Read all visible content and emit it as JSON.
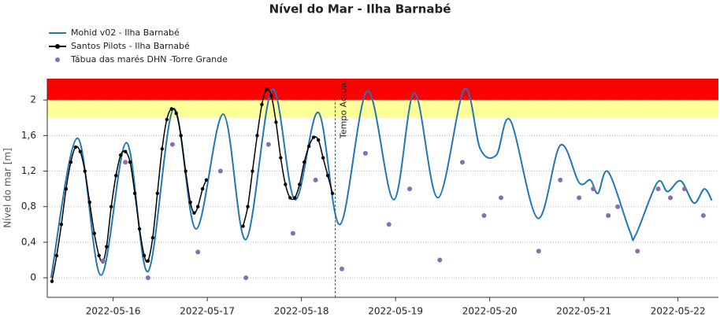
{
  "chart_data": {
    "type": "line",
    "title": "Nível do Mar - Ilha Barnabé",
    "y_label": "Nível do mar [m]",
    "xlim": [
      15.3,
      22.43
    ],
    "ylim": [
      -0.22,
      2.24
    ],
    "xticks": [
      {
        "value": 16,
        "label": "2022-05-16"
      },
      {
        "value": 17,
        "label": "2022-05-17"
      },
      {
        "value": 18,
        "label": "2022-05-18"
      },
      {
        "value": 19,
        "label": "2022-05-19"
      },
      {
        "value": 20,
        "label": "2022-05-20"
      },
      {
        "value": 21,
        "label": "2022-05-21"
      },
      {
        "value": 22,
        "label": "2022-05-22"
      }
    ],
    "yticks": [
      0,
      {
        "value": 0.4,
        "label": "0,4"
      },
      {
        "value": 0.8,
        "label": "0,8"
      },
      {
        "value": 1.2,
        "label": "1,2"
      },
      {
        "value": 1.6,
        "label": "1,6"
      },
      2
    ],
    "grid": true,
    "bands": [
      {
        "from": 2.0,
        "to": 2.24,
        "color": "#ff0000"
      },
      {
        "from": 1.8,
        "to": 2.0,
        "color": "#ffff99"
      }
    ],
    "marker_line": {
      "x": 18.36,
      "label": "Tempo Actual",
      "color": "#008000"
    },
    "series": [
      {
        "name": "Mohid v02 - Ilha Barnabé",
        "color": "#1f77b4",
        "style": "line",
        "x": [
          15.34,
          15.62,
          15.87,
          16.14,
          16.37,
          16.64,
          16.88,
          17.17,
          17.41,
          17.69,
          17.93,
          18.18,
          18.41,
          18.7,
          18.98,
          19.2,
          19.45,
          19.73,
          19.9,
          20.07,
          20.22,
          20.51,
          20.75,
          20.95,
          21.07,
          21.15,
          21.26,
          21.49,
          21.55,
          21.78,
          21.89,
          22.03,
          22.17,
          22.28,
          22.36
        ],
        "values": [
          0.0,
          1.57,
          0.03,
          1.52,
          0.07,
          1.9,
          0.55,
          1.84,
          0.43,
          2.12,
          0.88,
          1.86,
          0.6,
          2.1,
          0.88,
          2.08,
          0.9,
          2.12,
          1.45,
          1.38,
          1.77,
          0.67,
          1.49,
          1.07,
          1.1,
          0.95,
          1.19,
          0.52,
          0.48,
          1.07,
          0.97,
          1.09,
          0.84,
          1.0,
          0.87
        ]
      },
      {
        "name": "Santos Pilots - Ilha Barnabé",
        "color": "#000000",
        "style": "line-markers",
        "x": [
          15.35,
          15.4,
          15.45,
          15.5,
          15.55,
          15.6,
          15.65,
          15.7,
          15.75,
          15.8,
          15.85,
          15.89,
          15.93,
          15.98,
          16.03,
          16.08,
          16.13,
          16.18,
          16.23,
          16.28,
          16.33,
          16.37,
          16.42,
          16.47,
          16.52,
          16.57,
          16.62,
          16.67,
          16.72,
          16.77,
          16.82,
          16.86,
          16.9,
          16.95,
          16.99,
          17.2,
          17.38,
          17.43,
          17.48,
          17.53,
          17.58,
          17.63,
          17.68,
          17.73,
          17.78,
          17.83,
          17.88,
          17.93,
          17.98,
          18.03,
          18.08,
          18.13,
          18.18,
          18.23,
          18.28,
          18.33
        ],
        "values": [
          -0.04,
          0.25,
          0.6,
          1.0,
          1.3,
          1.47,
          1.42,
          1.2,
          0.85,
          0.5,
          0.25,
          0.18,
          0.35,
          0.8,
          1.15,
          1.38,
          1.42,
          1.3,
          0.95,
          0.55,
          0.25,
          0.19,
          0.45,
          0.95,
          1.45,
          1.78,
          1.9,
          1.85,
          1.6,
          1.2,
          0.85,
          0.73,
          0.8,
          1.0,
          1.1,
          null,
          0.58,
          0.8,
          1.2,
          1.6,
          1.95,
          2.12,
          2.05,
          1.75,
          1.35,
          1.05,
          0.9,
          0.9,
          1.05,
          1.3,
          1.48,
          1.58,
          1.55,
          1.35,
          1.15,
          0.95
        ]
      },
      {
        "name": "Tábua das marés DHN -Torre Grande",
        "color": "#8c6bb1",
        "style": "markers",
        "x": [
          15.89,
          16.13,
          16.37,
          16.63,
          16.9,
          17.14,
          17.41,
          17.65,
          17.91,
          18.15,
          18.43,
          18.68,
          18.93,
          19.15,
          19.47,
          19.71,
          19.94,
          20.12,
          20.52,
          20.75,
          20.95,
          21.1,
          21.26,
          21.36,
          21.57,
          21.79,
          21.92,
          22.07,
          22.27
        ],
        "values": [
          0.19,
          1.3,
          0.0,
          1.5,
          0.29,
          1.2,
          0.0,
          1.5,
          0.5,
          1.1,
          0.1,
          1.4,
          0.6,
          1.0,
          0.2,
          1.3,
          0.7,
          0.9,
          0.3,
          1.1,
          0.9,
          1.0,
          0.7,
          0.8,
          0.3,
          1.0,
          0.9,
          1.0,
          0.7
        ]
      }
    ]
  }
}
